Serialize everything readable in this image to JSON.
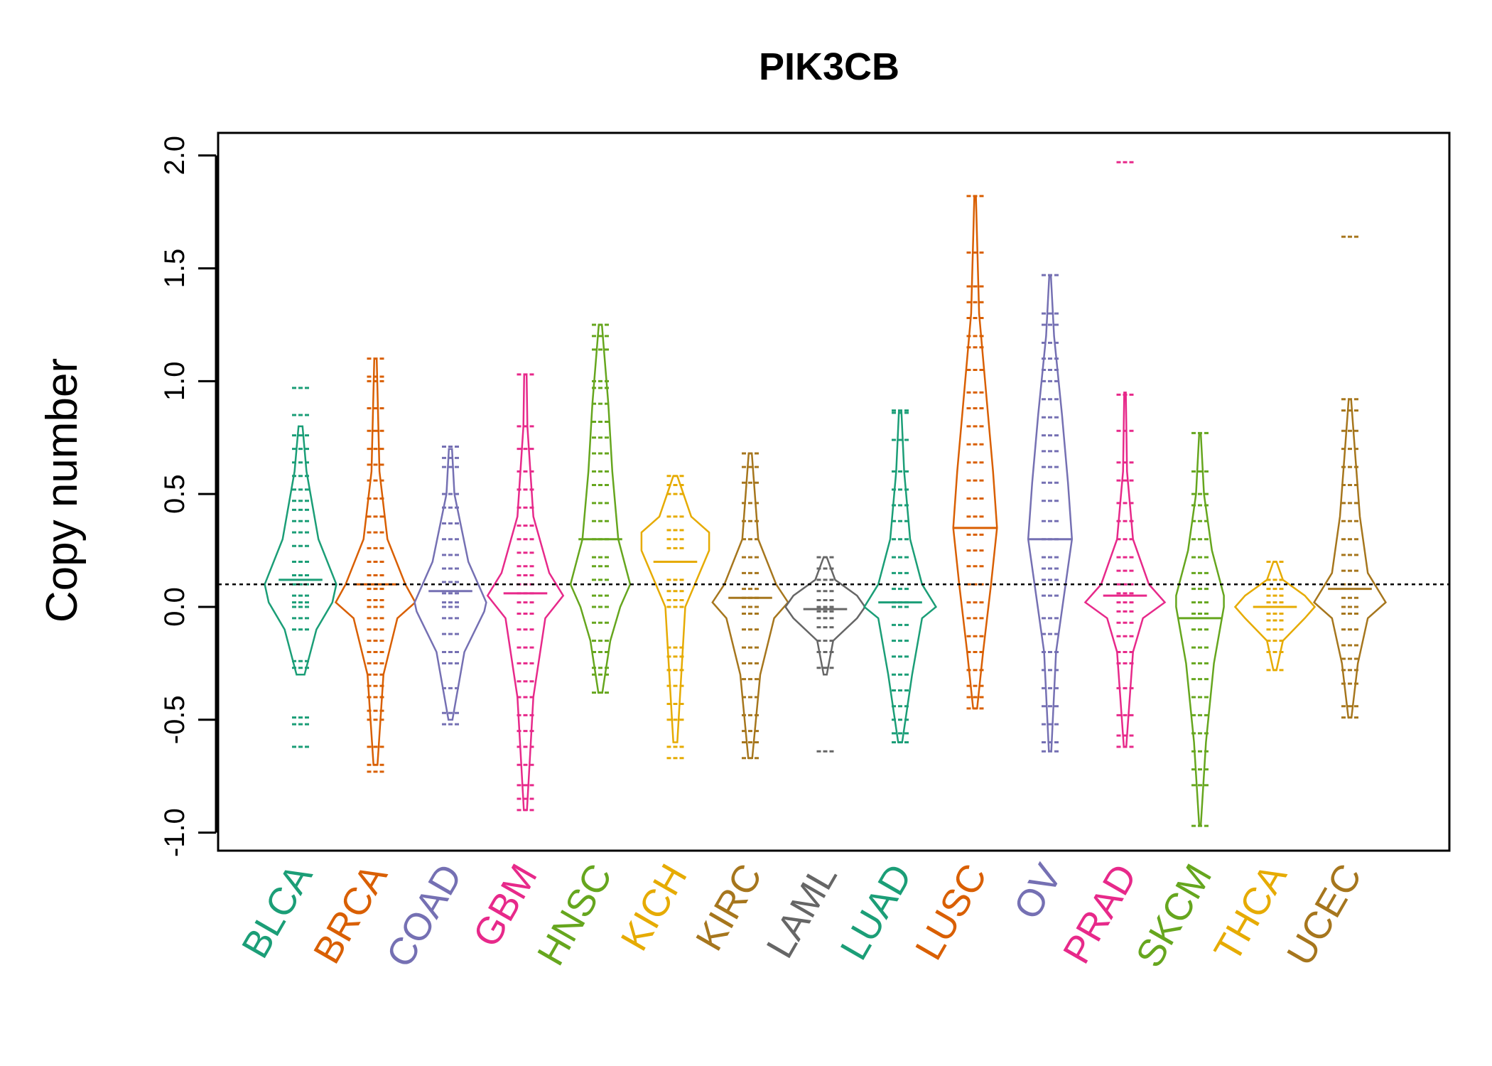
{
  "chart_data": {
    "type": "beanplot",
    "title": "PIK3CB",
    "xlabel": "",
    "ylabel": "Copy number",
    "ylim": [
      -1.08,
      2.1
    ],
    "yticks": [
      -1.0,
      -0.5,
      0.0,
      0.5,
      1.0,
      1.5,
      2.0
    ],
    "ytick_labels": [
      "-1.0",
      "-0.5",
      "0.0",
      "0.5",
      "1.0",
      "1.5",
      "2.0"
    ],
    "reference_line": 0.1,
    "grid": false,
    "categories": [
      "BLCA",
      "BRCA",
      "COAD",
      "GBM",
      "HNSC",
      "KICH",
      "KIRC",
      "LAML",
      "LUAD",
      "LUSC",
      "OV",
      "PRAD",
      "SKCM",
      "THCA",
      "UCEC"
    ],
    "colors": [
      "#1B9E77",
      "#D95F02",
      "#7570B3",
      "#E7298A",
      "#66A61E",
      "#E6AB02",
      "#A6761D",
      "#666666",
      "#1B9E77",
      "#D95F02",
      "#7570B3",
      "#E7298A",
      "#66A61E",
      "#E6AB02",
      "#A6761D"
    ],
    "series": [
      {
        "name": "BLCA",
        "min": -0.62,
        "max": 0.97,
        "mean": 0.12,
        "shape": [
          [
            -0.3,
            0.1
          ],
          [
            -0.1,
            0.4
          ],
          [
            0.02,
            0.8
          ],
          [
            0.1,
            0.9
          ],
          [
            0.3,
            0.45
          ],
          [
            0.6,
            0.15
          ],
          [
            0.8,
            0.05
          ]
        ],
        "points": [
          -0.62,
          -0.52,
          -0.49,
          -0.27,
          -0.24,
          -0.1,
          -0.05,
          0.0,
          0.02,
          0.05,
          0.1,
          0.14,
          0.2,
          0.27,
          0.33,
          0.38,
          0.43,
          0.47,
          0.52,
          0.58,
          0.64,
          0.7,
          0.76,
          0.85,
          0.97
        ]
      },
      {
        "name": "BRCA",
        "min": -0.73,
        "max": 1.1,
        "mean": 0.1,
        "shape": [
          [
            -0.7,
            0.05
          ],
          [
            -0.3,
            0.2
          ],
          [
            -0.05,
            0.55
          ],
          [
            0.02,
            1.0
          ],
          [
            0.1,
            0.75
          ],
          [
            0.3,
            0.3
          ],
          [
            0.6,
            0.1
          ],
          [
            1.1,
            0.03
          ]
        ],
        "points": [
          -0.73,
          -0.7,
          -0.62,
          -0.5,
          -0.46,
          -0.4,
          -0.35,
          -0.3,
          -0.25,
          -0.2,
          -0.15,
          -0.1,
          -0.05,
          0.0,
          0.03,
          0.08,
          0.14,
          0.2,
          0.26,
          0.33,
          0.4,
          0.48,
          0.56,
          0.63,
          0.7,
          0.78,
          0.88,
          1.0,
          1.02,
          1.1
        ]
      },
      {
        "name": "COAD",
        "min": -0.52,
        "max": 0.71,
        "mean": 0.07,
        "shape": [
          [
            -0.5,
            0.05
          ],
          [
            -0.2,
            0.35
          ],
          [
            -0.02,
            0.85
          ],
          [
            0.02,
            0.9
          ],
          [
            0.2,
            0.45
          ],
          [
            0.5,
            0.1
          ],
          [
            0.7,
            0.04
          ]
        ],
        "points": [
          -0.52,
          -0.47,
          -0.36,
          -0.25,
          -0.2,
          -0.12,
          -0.05,
          0.0,
          0.02,
          0.06,
          0.11,
          0.17,
          0.23,
          0.3,
          0.37,
          0.44,
          0.5,
          0.62,
          0.66,
          0.71
        ]
      },
      {
        "name": "GBM",
        "min": -0.9,
        "max": 1.03,
        "mean": 0.06,
        "shape": [
          [
            -0.9,
            0.04
          ],
          [
            -0.4,
            0.2
          ],
          [
            -0.05,
            0.5
          ],
          [
            0.05,
            0.95
          ],
          [
            0.15,
            0.6
          ],
          [
            0.4,
            0.2
          ],
          [
            0.8,
            0.05
          ],
          [
            1.03,
            0.03
          ]
        ],
        "points": [
          -0.9,
          -0.85,
          -0.79,
          -0.7,
          -0.62,
          -0.55,
          -0.48,
          -0.4,
          -0.33,
          -0.25,
          -0.18,
          -0.1,
          -0.03,
          0.02,
          0.06,
          0.1,
          0.14,
          0.18,
          0.24,
          0.3,
          0.36,
          0.44,
          0.52,
          0.6,
          0.7,
          0.8,
          1.03
        ]
      },
      {
        "name": "HNSC",
        "min": -0.38,
        "max": 1.25,
        "mean": 0.3,
        "shape": [
          [
            -0.38,
            0.05
          ],
          [
            -0.15,
            0.25
          ],
          [
            0.0,
            0.5
          ],
          [
            0.1,
            0.75
          ],
          [
            0.3,
            0.45
          ],
          [
            0.6,
            0.3
          ],
          [
            0.9,
            0.2
          ],
          [
            1.25,
            0.04
          ]
        ],
        "points": [
          -0.38,
          -0.3,
          -0.27,
          -0.2,
          -0.15,
          -0.07,
          0.0,
          0.05,
          0.12,
          0.18,
          0.22,
          0.3,
          0.38,
          0.46,
          0.54,
          0.6,
          0.68,
          0.75,
          0.82,
          0.9,
          0.97,
          1.0,
          1.14,
          1.2,
          1.25
        ]
      },
      {
        "name": "KICH",
        "min": -0.67,
        "max": 0.58,
        "mean": 0.2,
        "shape": [
          [
            -0.6,
            0.05
          ],
          [
            -0.3,
            0.15
          ],
          [
            0.0,
            0.25
          ],
          [
            0.25,
            0.85
          ],
          [
            0.33,
            0.85
          ],
          [
            0.4,
            0.4
          ],
          [
            0.58,
            0.05
          ]
        ],
        "points": [
          -0.67,
          -0.62,
          -0.5,
          -0.43,
          -0.35,
          -0.28,
          -0.22,
          -0.18,
          0.0,
          0.03,
          0.07,
          0.12,
          0.2,
          0.26,
          0.3,
          0.34,
          0.4,
          0.5,
          0.54,
          0.58
        ]
      },
      {
        "name": "KIRC",
        "min": -0.67,
        "max": 0.68,
        "mean": 0.04,
        "shape": [
          [
            -0.67,
            0.05
          ],
          [
            -0.3,
            0.25
          ],
          [
            -0.05,
            0.6
          ],
          [
            0.02,
            0.95
          ],
          [
            0.1,
            0.65
          ],
          [
            0.3,
            0.2
          ],
          [
            0.68,
            0.04
          ]
        ],
        "points": [
          -0.67,
          -0.6,
          -0.55,
          -0.48,
          -0.4,
          -0.32,
          -0.25,
          -0.18,
          -0.1,
          -0.03,
          0.0,
          0.04,
          0.08,
          0.15,
          0.22,
          0.3,
          0.38,
          0.46,
          0.55,
          0.62,
          0.68
        ]
      },
      {
        "name": "LAML",
        "min": -0.64,
        "max": 0.22,
        "mean": -0.01,
        "shape": [
          [
            -0.3,
            0.04
          ],
          [
            -0.15,
            0.2
          ],
          [
            -0.05,
            0.8
          ],
          [
            0.0,
            1.0
          ],
          [
            0.05,
            0.8
          ],
          [
            0.12,
            0.25
          ],
          [
            0.22,
            0.04
          ]
        ],
        "points": [
          -0.64,
          -0.27,
          -0.2,
          -0.15,
          -0.09,
          -0.05,
          -0.02,
          0.0,
          0.03,
          0.07,
          0.12,
          0.17,
          0.22
        ]
      },
      {
        "name": "LUAD",
        "min": -0.6,
        "max": 0.87,
        "mean": 0.02,
        "shape": [
          [
            -0.6,
            0.05
          ],
          [
            -0.3,
            0.3
          ],
          [
            -0.05,
            0.55
          ],
          [
            0.0,
            0.9
          ],
          [
            0.1,
            0.55
          ],
          [
            0.3,
            0.25
          ],
          [
            0.6,
            0.1
          ],
          [
            0.87,
            0.03
          ]
        ],
        "points": [
          -0.6,
          -0.56,
          -0.5,
          -0.44,
          -0.37,
          -0.3,
          -0.22,
          -0.15,
          -0.08,
          0.0,
          0.02,
          0.08,
          0.15,
          0.22,
          0.3,
          0.38,
          0.45,
          0.52,
          0.6,
          0.74,
          0.86,
          0.87
        ]
      },
      {
        "name": "LUSC",
        "min": -0.45,
        "max": 1.82,
        "mean": 0.35,
        "shape": [
          [
            -0.45,
            0.05
          ],
          [
            -0.2,
            0.2
          ],
          [
            0.1,
            0.4
          ],
          [
            0.35,
            0.55
          ],
          [
            0.6,
            0.45
          ],
          [
            0.9,
            0.3
          ],
          [
            1.3,
            0.1
          ],
          [
            1.82,
            0.02
          ]
        ],
        "points": [
          -0.45,
          -0.4,
          -0.35,
          -0.28,
          -0.2,
          -0.13,
          -0.05,
          0.02,
          0.1,
          0.18,
          0.25,
          0.32,
          0.4,
          0.48,
          0.56,
          0.64,
          0.72,
          0.8,
          0.88,
          0.95,
          1.05,
          1.15,
          1.2,
          1.28,
          1.35,
          1.42,
          1.57,
          1.82
        ]
      },
      {
        "name": "OV",
        "min": -0.64,
        "max": 1.47,
        "mean": 0.3,
        "shape": [
          [
            -0.64,
            0.03
          ],
          [
            -0.2,
            0.15
          ],
          [
            0.05,
            0.35
          ],
          [
            0.3,
            0.55
          ],
          [
            0.55,
            0.45
          ],
          [
            0.85,
            0.3
          ],
          [
            1.2,
            0.1
          ],
          [
            1.47,
            0.02
          ]
        ],
        "points": [
          -0.64,
          -0.6,
          -0.52,
          -0.44,
          -0.36,
          -0.28,
          -0.2,
          -0.12,
          -0.05,
          0.05,
          0.12,
          0.17,
          0.22,
          0.3,
          0.38,
          0.47,
          0.55,
          0.62,
          0.69,
          0.76,
          0.84,
          0.92,
          1.0,
          1.05,
          1.1,
          1.17,
          1.25,
          1.3,
          1.47
        ]
      },
      {
        "name": "PRAD",
        "min": -0.62,
        "max": 1.97,
        "mean": 0.05,
        "shape": [
          [
            -0.62,
            0.03
          ],
          [
            -0.2,
            0.2
          ],
          [
            -0.05,
            0.45
          ],
          [
            0.02,
            1.0
          ],
          [
            0.1,
            0.6
          ],
          [
            0.3,
            0.2
          ],
          [
            0.6,
            0.05
          ],
          [
            0.95,
            0.02
          ]
        ],
        "points": [
          -0.62,
          -0.57,
          -0.48,
          -0.36,
          -0.25,
          -0.2,
          -0.13,
          -0.07,
          -0.02,
          0.02,
          0.06,
          0.1,
          0.16,
          0.22,
          0.3,
          0.38,
          0.46,
          0.56,
          0.64,
          0.78,
          0.94,
          1.97
        ]
      },
      {
        "name": "SKCM",
        "min": -0.97,
        "max": 0.77,
        "mean": -0.05,
        "shape": [
          [
            -0.97,
            0.02
          ],
          [
            -0.6,
            0.15
          ],
          [
            -0.25,
            0.35
          ],
          [
            0.0,
            0.6
          ],
          [
            0.05,
            0.6
          ],
          [
            0.25,
            0.3
          ],
          [
            0.5,
            0.1
          ],
          [
            0.77,
            0.02
          ]
        ],
        "points": [
          -0.97,
          -0.79,
          -0.72,
          -0.64,
          -0.56,
          -0.48,
          -0.4,
          -0.32,
          -0.25,
          -0.18,
          -0.1,
          -0.03,
          0.02,
          0.08,
          0.15,
          0.22,
          0.3,
          0.38,
          0.45,
          0.5,
          0.6,
          0.77
        ]
      },
      {
        "name": "THCA",
        "min": -0.28,
        "max": 0.2,
        "mean": 0.0,
        "shape": [
          [
            -0.28,
            0.04
          ],
          [
            -0.15,
            0.2
          ],
          [
            -0.05,
            0.75
          ],
          [
            0.0,
            1.0
          ],
          [
            0.05,
            0.75
          ],
          [
            0.12,
            0.2
          ],
          [
            0.2,
            0.04
          ]
        ],
        "points": [
          -0.28,
          -0.2,
          -0.15,
          -0.1,
          -0.06,
          -0.03,
          0.0,
          0.02,
          0.05,
          0.08,
          0.12,
          0.2
        ]
      },
      {
        "name": "UCEC",
        "min": -0.49,
        "max": 1.64,
        "mean": 0.08,
        "shape": [
          [
            -0.49,
            0.04
          ],
          [
            -0.25,
            0.2
          ],
          [
            -0.05,
            0.45
          ],
          [
            0.02,
            0.9
          ],
          [
            0.15,
            0.45
          ],
          [
            0.4,
            0.25
          ],
          [
            0.8,
            0.08
          ],
          [
            0.92,
            0.03
          ]
        ],
        "points": [
          -0.49,
          -0.44,
          -0.34,
          -0.28,
          -0.23,
          -0.17,
          -0.1,
          -0.03,
          0.0,
          0.04,
          0.1,
          0.16,
          0.23,
          0.3,
          0.38,
          0.46,
          0.54,
          0.62,
          0.7,
          0.78,
          0.87,
          0.92,
          1.64
        ]
      }
    ]
  }
}
